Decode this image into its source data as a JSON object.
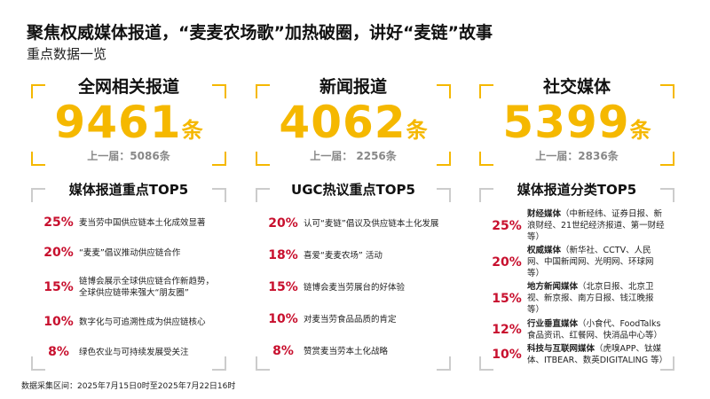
{
  "header": {
    "title": "聚焦权威媒体报道，“麦麦农场歌”加热破圈，讲好“麦链”故事",
    "subtitle": "重点数据一览"
  },
  "stats": [
    {
      "label": "全网相关报道",
      "value": 9461,
      "unit": "条",
      "previous": "上一届：5086条"
    },
    {
      "label": "新闻报道",
      "value": 4062,
      "unit": "条",
      "previous": "上一届： 2256条"
    },
    {
      "label": "社交媒体",
      "value": 5399,
      "unit": "条",
      "previous": "上一届：2836条"
    }
  ],
  "lists": [
    {
      "title": "媒体报道重点TOP5",
      "items": [
        {
          "pct": "25%",
          "text": "麦当劳中国供应链本土化成效显著"
        },
        {
          "pct": "20%",
          "text": "“麦麦”倡议推动供应链合作"
        },
        {
          "pct": "15%",
          "text": "链博会展示全球供应链合作新趋势，全球供应链带来强大“朋友圈”"
        },
        {
          "pct": "10%",
          "text": "数字化与可追溯性成为供应链核心"
        },
        {
          "pct": "8%",
          "text": "绿色农业与可持续发展受关注"
        }
      ]
    },
    {
      "title": "UGC热议重点TOP5",
      "items": [
        {
          "pct": "20%",
          "text": "认可“麦链”倡议及供应链本土化发展"
        },
        {
          "pct": "18%",
          "text": "喜爱“麦麦农场” 活动"
        },
        {
          "pct": "15%",
          "text": "链博会麦当劳展台的好体验"
        },
        {
          "pct": "10%",
          "text": "对麦当劳食品品质的肯定"
        },
        {
          "pct": "8%",
          "text": "赞赏麦当劳本土化战略"
        }
      ]
    },
    {
      "title": "媒体报道分类TOP5",
      "items": [
        {
          "pct": "25%",
          "bold": "财经媒体",
          "text": "（中新经纬、证券日报、新浪财经、21世纪经济报道、第一财经等）"
        },
        {
          "pct": "20%",
          "bold": "权威媒体",
          "text": "（新华社、CCTV、人民网、中国新闻网、光明网、环球网等）"
        },
        {
          "pct": "15%",
          "bold": "地方新闻媒体",
          "text": "（北京日报、北京卫视、新京报、南方日报、钱江晚报等）"
        },
        {
          "pct": "12%",
          "bold": "行业垂直媒体",
          "text": "（小食代、FoodTalks食品资讯、红餐网、快消品中心等）"
        },
        {
          "pct": "10%",
          "bold": "科技与互联网媒体",
          "text": "（虎嗅APP、钛媒体、ITBEAR、数英DIGITALING 等）"
        }
      ]
    }
  ],
  "footnote": "数据采集区间：2025年7月15日0时至2025年7月22日16时"
}
